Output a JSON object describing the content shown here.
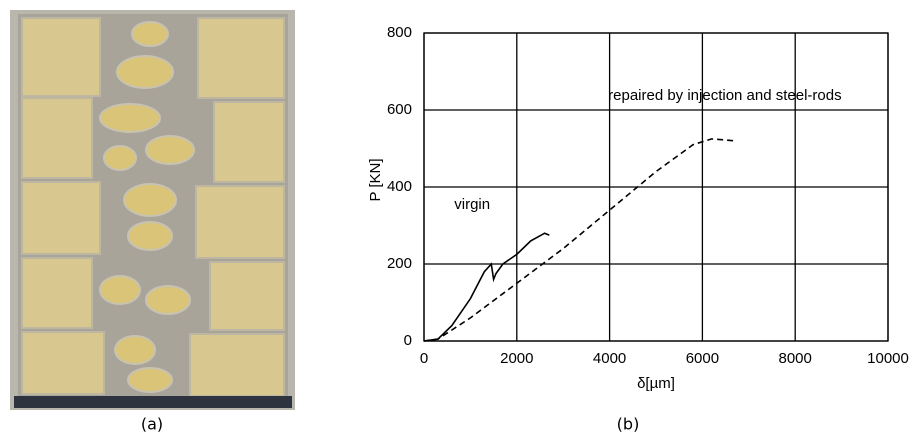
{
  "captions": [
    "(a)",
    "(b)"
  ],
  "chart_data": {
    "type": "line",
    "xlabel": "δ[µm]",
    "ylabel": "P [KN]",
    "xlim": [
      0,
      10000
    ],
    "ylim": [
      0,
      800
    ],
    "xticks": [
      0,
      2000,
      4000,
      6000,
      8000,
      10000
    ],
    "yticks": [
      0,
      200,
      400,
      600,
      800
    ],
    "grid": true,
    "series": [
      {
        "name": "virgin",
        "color": "#000000",
        "style": "solid",
        "x": [
          0,
          300,
          600,
          1000,
          1300,
          1450,
          1500,
          1550,
          1700,
          2000,
          2300,
          2600,
          2700
        ],
        "values": [
          0,
          5,
          40,
          110,
          180,
          200,
          160,
          175,
          200,
          225,
          260,
          280,
          275
        ]
      },
      {
        "name": "repaired by injection and steel-rods",
        "color": "#000000",
        "style": "dashed",
        "x": [
          0,
          300,
          1000,
          2000,
          3000,
          4000,
          5000,
          5800,
          6200,
          6700
        ],
        "values": [
          0,
          5,
          60,
          150,
          240,
          340,
          440,
          510,
          525,
          520
        ]
      }
    ]
  }
}
